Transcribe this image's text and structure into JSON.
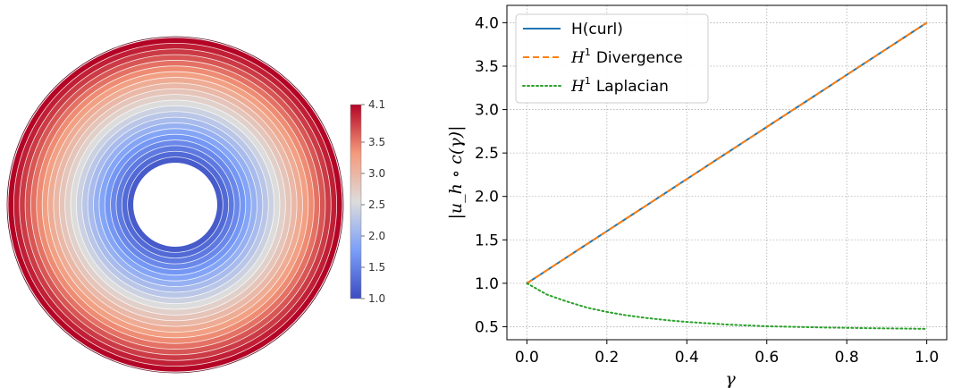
{
  "chart_data": [
    {
      "type": "heatmap",
      "description_kind": "annulus contour field",
      "colormap": "coolwarm",
      "colorbar": {
        "min": 1.0,
        "max": 4.1,
        "ticks": [
          "1.0",
          "1.5",
          "2.0",
          "2.5",
          "3.0",
          "3.5",
          "4.1"
        ],
        "tick_values": [
          1.0,
          1.5,
          2.0,
          2.5,
          3.0,
          3.5,
          4.1
        ]
      },
      "field": {
        "value_at_inner_radius": 1.0,
        "value_at_outer_radius": 4.1,
        "contour_count": 22
      },
      "colors": {
        "low": "#3b4cc0",
        "mid": "#dddddd",
        "high": "#b40426"
      }
    },
    {
      "type": "line",
      "xlabel": "γ",
      "ylabel": "|u_h ∘ c(γ)|",
      "xlim": [
        -0.05,
        1.05
      ],
      "ylim": [
        0.35,
        4.2
      ],
      "xticks": [
        "0.0",
        "0.2",
        "0.4",
        "0.6",
        "0.8",
        "1.0"
      ],
      "xtick_values": [
        0.0,
        0.2,
        0.4,
        0.6,
        0.8,
        1.0
      ],
      "yticks": [
        "0.5",
        "1.0",
        "1.5",
        "2.0",
        "2.5",
        "3.0",
        "3.5",
        "4.0"
      ],
      "ytick_values": [
        0.5,
        1.0,
        1.5,
        2.0,
        2.5,
        3.0,
        3.5,
        4.0
      ],
      "grid": true,
      "legend_position": "top-left",
      "x": [
        0.0,
        0.05,
        0.1,
        0.15,
        0.2,
        0.25,
        0.3,
        0.35,
        0.4,
        0.45,
        0.5,
        0.55,
        0.6,
        0.65,
        0.7,
        0.75,
        0.8,
        0.85,
        0.9,
        0.95,
        1.0
      ],
      "series": [
        {
          "name": "H(curl)",
          "legend_plain": "H(curl)",
          "color": "#1f77b4",
          "style": "solid",
          "values": [
            1.0,
            1.15,
            1.3,
            1.45,
            1.6,
            1.75,
            1.9,
            2.05,
            2.2,
            2.35,
            2.5,
            2.65,
            2.8,
            2.95,
            3.1,
            3.25,
            3.4,
            3.55,
            3.7,
            3.85,
            4.0
          ]
        },
        {
          "name": "H1 Divergence",
          "legend_math": "H",
          "legend_sup": "1",
          "legend_rest": "Divergence",
          "color": "#ff7f0e",
          "style": "dashed",
          "values": [
            1.0,
            1.15,
            1.3,
            1.45,
            1.6,
            1.75,
            1.9,
            2.05,
            2.2,
            2.35,
            2.5,
            2.65,
            2.8,
            2.95,
            3.1,
            3.25,
            3.4,
            3.55,
            3.7,
            3.85,
            4.0
          ]
        },
        {
          "name": "H1 Laplacian",
          "legend_math": "H",
          "legend_sup": "1",
          "legend_rest": "Laplacian",
          "color": "#2ca02c",
          "style": "dotted",
          "values": [
            1.0,
            0.87,
            0.79,
            0.72,
            0.67,
            0.63,
            0.6,
            0.575,
            0.555,
            0.54,
            0.525,
            0.515,
            0.505,
            0.5,
            0.495,
            0.49,
            0.487,
            0.483,
            0.48,
            0.478,
            0.475
          ]
        }
      ]
    }
  ]
}
